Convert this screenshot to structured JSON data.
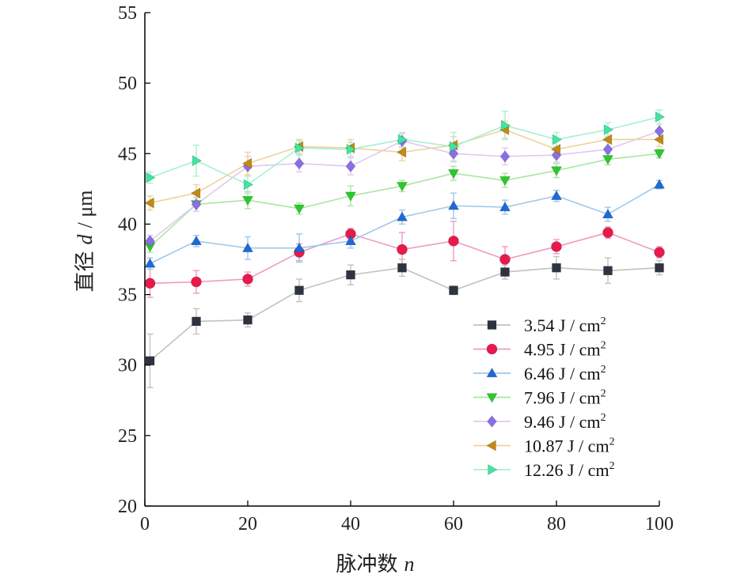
{
  "chart_data": {
    "type": "line",
    "xlabel": "脉冲数",
    "xlabel_var": "n",
    "ylabel": "直径",
    "ylabel_var": "d",
    "ylabel_unit": "/ μm",
    "xlim": [
      0,
      100
    ],
    "ylim": [
      20,
      55
    ],
    "xticks": [
      0,
      20,
      40,
      60,
      80,
      100
    ],
    "yticks": [
      20,
      25,
      30,
      35,
      40,
      45,
      50,
      55
    ],
    "legend_position": "lower-right",
    "grid": false,
    "x": [
      1,
      10,
      20,
      30,
      40,
      50,
      60,
      70,
      80,
      90,
      100
    ],
    "series": [
      {
        "name": "3.54 J / cm",
        "name_sup": "2",
        "marker": "square",
        "color": "#2e3340",
        "line_color": "#c2c2c2",
        "values": [
          30.3,
          33.1,
          33.2,
          35.3,
          36.4,
          36.9,
          35.3,
          36.6,
          36.9,
          36.7,
          36.9
        ],
        "errors": [
          1.9,
          0.9,
          0.5,
          0.8,
          0.7,
          0.6,
          0.3,
          0.5,
          0.8,
          0.9,
          0.5
        ]
      },
      {
        "name": "4.95 J / cm",
        "name_sup": "2",
        "marker": "circle",
        "color": "#e8194b",
        "line_color": "#f09ac7",
        "values": [
          35.8,
          35.9,
          36.1,
          38.0,
          39.3,
          38.2,
          38.8,
          37.5,
          38.4,
          39.4,
          38.0
        ],
        "errors": [
          1.0,
          0.8,
          0.5,
          0.6,
          0.4,
          1.2,
          1.4,
          0.9,
          0.5,
          0.4,
          0.4
        ]
      },
      {
        "name": "6.46 J / cm",
        "name_sup": "2",
        "marker": "triangle-up",
        "color": "#1c6ad6",
        "line_color": "#9ec9ec",
        "values": [
          37.2,
          38.8,
          38.3,
          38.3,
          38.8,
          40.5,
          41.3,
          41.2,
          42.0,
          40.7,
          42.8
        ],
        "errors": [
          0.4,
          0.4,
          0.8,
          1.0,
          0.5,
          0.5,
          0.9,
          0.5,
          0.4,
          0.5,
          0.3
        ]
      },
      {
        "name": "7.96 J / cm",
        "name_sup": "2",
        "marker": "triangle-down",
        "color": "#2bc92b",
        "line_color": "#a8e8a0",
        "values": [
          38.4,
          41.4,
          41.7,
          41.1,
          42.0,
          42.7,
          43.6,
          43.1,
          43.8,
          44.6,
          45.0
        ],
        "errors": [
          0.4,
          0.5,
          0.6,
          0.4,
          0.7,
          0.4,
          0.5,
          0.5,
          0.5,
          0.4,
          0.3
        ]
      },
      {
        "name": "9.46 J / cm",
        "name_sup": "2",
        "marker": "diamond",
        "color": "#8a6ee6",
        "line_color": "#e2c8f2",
        "values": [
          38.8,
          41.4,
          44.1,
          44.3,
          44.1,
          45.9,
          45.0,
          44.8,
          44.9,
          45.3,
          46.6
        ],
        "errors": [
          0.4,
          0.5,
          0.7,
          0.6,
          0.6,
          0.5,
          0.6,
          0.6,
          0.5,
          0.6,
          0.5
        ]
      },
      {
        "name": "10.87 J / cm",
        "name_sup": "2",
        "marker": "triangle-left",
        "color": "#c28a10",
        "line_color": "#f0d29a",
        "values": [
          41.5,
          42.2,
          44.3,
          45.5,
          45.4,
          45.1,
          45.6,
          46.7,
          45.3,
          46.0,
          46.0
        ],
        "errors": [
          0.5,
          0.6,
          0.8,
          0.5,
          0.6,
          0.6,
          0.6,
          0.6,
          0.6,
          0.6,
          0.5
        ]
      },
      {
        "name": "12.26 J / cm",
        "name_sup": "2",
        "marker": "triangle-right",
        "color": "#3fe6a0",
        "line_color": "#a8f0d0",
        "values": [
          43.3,
          44.5,
          42.8,
          45.4,
          45.3,
          46.0,
          45.5,
          47.0,
          46.0,
          46.7,
          47.6
        ],
        "errors": [
          0.4,
          1.1,
          0.6,
          0.5,
          0.5,
          0.5,
          1.0,
          1.0,
          0.5,
          0.5,
          0.5
        ]
      }
    ]
  }
}
